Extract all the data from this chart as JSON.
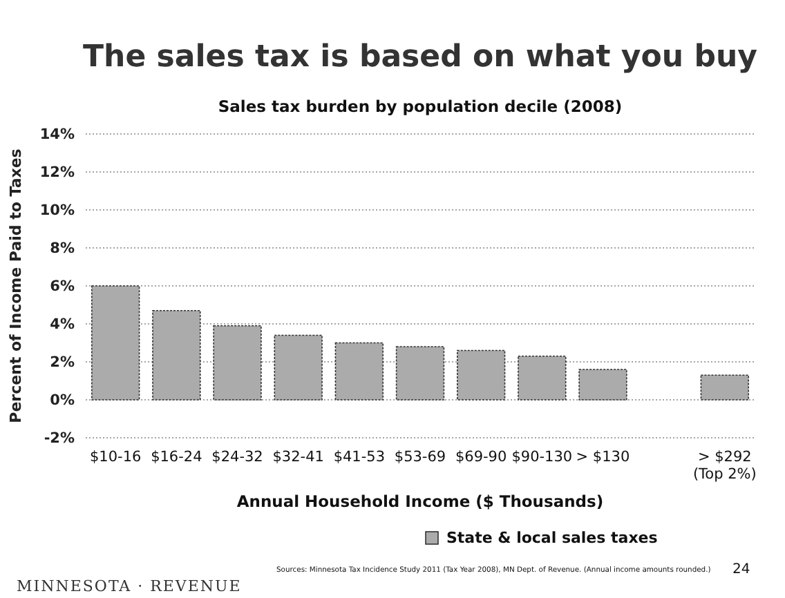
{
  "chart_data": {
    "type": "bar",
    "title": "The sales tax is based on what you buy",
    "subtitle": "Sales tax burden by population decile (2008)",
    "xlabel": "Annual Household Income ($ Thousands)",
    "ylabel": "Percent of Income Paid to Taxes",
    "categories": [
      "$10-16",
      "$16-24",
      "$24-32",
      "$32-41",
      "$41-53",
      "$53-69",
      "$69-90",
      "$90-130",
      "> $130",
      null,
      "> $292\n(Top 2%)"
    ],
    "series": [
      {
        "name": "State & local sales taxes",
        "color": "#ababab",
        "values": [
          6.0,
          4.7,
          3.9,
          3.4,
          3.0,
          2.8,
          2.6,
          2.3,
          1.6,
          null,
          1.3
        ]
      }
    ],
    "ylim": [
      -2,
      14
    ],
    "yticks": [
      {
        "value": -2,
        "label": "-2%"
      },
      {
        "value": 0,
        "label": "0%"
      },
      {
        "value": 2,
        "label": "2%"
      },
      {
        "value": 4,
        "label": "4%"
      },
      {
        "value": 6,
        "label": "6%"
      },
      {
        "value": 8,
        "label": "8%"
      },
      {
        "value": 10,
        "label": "10%"
      },
      {
        "value": 12,
        "label": "12%"
      },
      {
        "value": 14,
        "label": "14%"
      }
    ],
    "grid": "y",
    "legend": "bottom",
    "annotations": [
      "Sources: Minnesota Tax Incidence Study 2011 (Tax Year 2008), MN Dept. of Revenue. (Annual income amounts rounded.)",
      "24",
      "MINNESOTA · REVENUE"
    ]
  }
}
